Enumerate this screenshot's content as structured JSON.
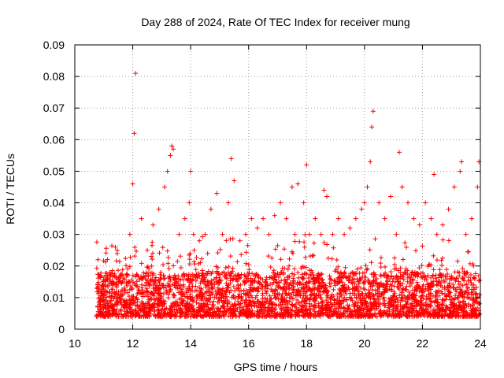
{
  "chart_data": {
    "type": "scatter",
    "title": "Day 288 of 2024, Rate Of TEC Index for receiver mung",
    "xlabel": "GPS time / hours",
    "ylabel": "ROTI / TECUs",
    "xlim": [
      10,
      24
    ],
    "ylim": [
      0,
      0.09
    ],
    "x_ticks": [
      10,
      12,
      14,
      16,
      18,
      20,
      22,
      24
    ],
    "y_ticks": [
      0,
      0.01,
      0.02,
      0.03,
      0.04,
      0.05,
      0.06,
      0.07,
      0.08,
      0.09
    ],
    "x_tick_labels": [
      "10",
      "12",
      "14",
      "16",
      "18",
      "20",
      "22",
      "24"
    ],
    "y_tick_labels": [
      "0",
      "0.01",
      "0.02",
      "0.03",
      "0.04",
      "0.05",
      "0.06",
      "0.07",
      "0.08",
      "0.09"
    ],
    "grid": true,
    "marker": "+",
    "marker_color": "#ff0000",
    "series": [
      {
        "name": "ROTI",
        "x": [
          10.8,
          10.9,
          11.0,
          11.2,
          11.4,
          11.5,
          11.7,
          11.9,
          12.0,
          12.05,
          12.1,
          12.3,
          12.5,
          12.7,
          12.9,
          13.1,
          13.2,
          13.3,
          13.35,
          13.4,
          13.6,
          13.8,
          13.95,
          14.0,
          14.1,
          14.3,
          14.5,
          14.7,
          14.9,
          15.1,
          15.3,
          15.4,
          15.5,
          15.7,
          15.9,
          16.1,
          16.3,
          16.5,
          16.7,
          16.9,
          17.1,
          17.3,
          17.5,
          17.6,
          17.7,
          17.9,
          18.0,
          18.1,
          18.3,
          18.5,
          18.6,
          18.7,
          18.9,
          19.1,
          19.3,
          19.5,
          19.7,
          19.9,
          20.0,
          20.1,
          20.2,
          20.25,
          20.3,
          20.5,
          20.7,
          20.9,
          21.1,
          21.2,
          21.3,
          21.5,
          21.7,
          21.9,
          22.1,
          22.3,
          22.4,
          22.5,
          22.7,
          22.9,
          23.1,
          23.3,
          23.35,
          23.5,
          23.7,
          23.9,
          23.95
        ],
        "y": [
          0.022,
          0.012,
          0.01,
          0.015,
          0.026,
          0.011,
          0.013,
          0.03,
          0.046,
          0.062,
          0.081,
          0.035,
          0.025,
          0.033,
          0.038,
          0.045,
          0.05,
          0.055,
          0.058,
          0.057,
          0.03,
          0.035,
          0.04,
          0.05,
          0.03,
          0.028,
          0.03,
          0.038,
          0.043,
          0.03,
          0.04,
          0.054,
          0.047,
          0.028,
          0.03,
          0.035,
          0.032,
          0.035,
          0.03,
          0.036,
          0.04,
          0.035,
          0.045,
          0.03,
          0.046,
          0.04,
          0.052,
          0.03,
          0.035,
          0.03,
          0.044,
          0.042,
          0.03,
          0.035,
          0.03,
          0.032,
          0.035,
          0.038,
          0.04,
          0.045,
          0.053,
          0.064,
          0.069,
          0.04,
          0.035,
          0.042,
          0.03,
          0.056,
          0.045,
          0.04,
          0.035,
          0.033,
          0.04,
          0.035,
          0.049,
          0.03,
          0.033,
          0.038,
          0.045,
          0.05,
          0.053,
          0.03,
          0.035,
          0.045,
          0.053
        ]
      }
    ]
  }
}
